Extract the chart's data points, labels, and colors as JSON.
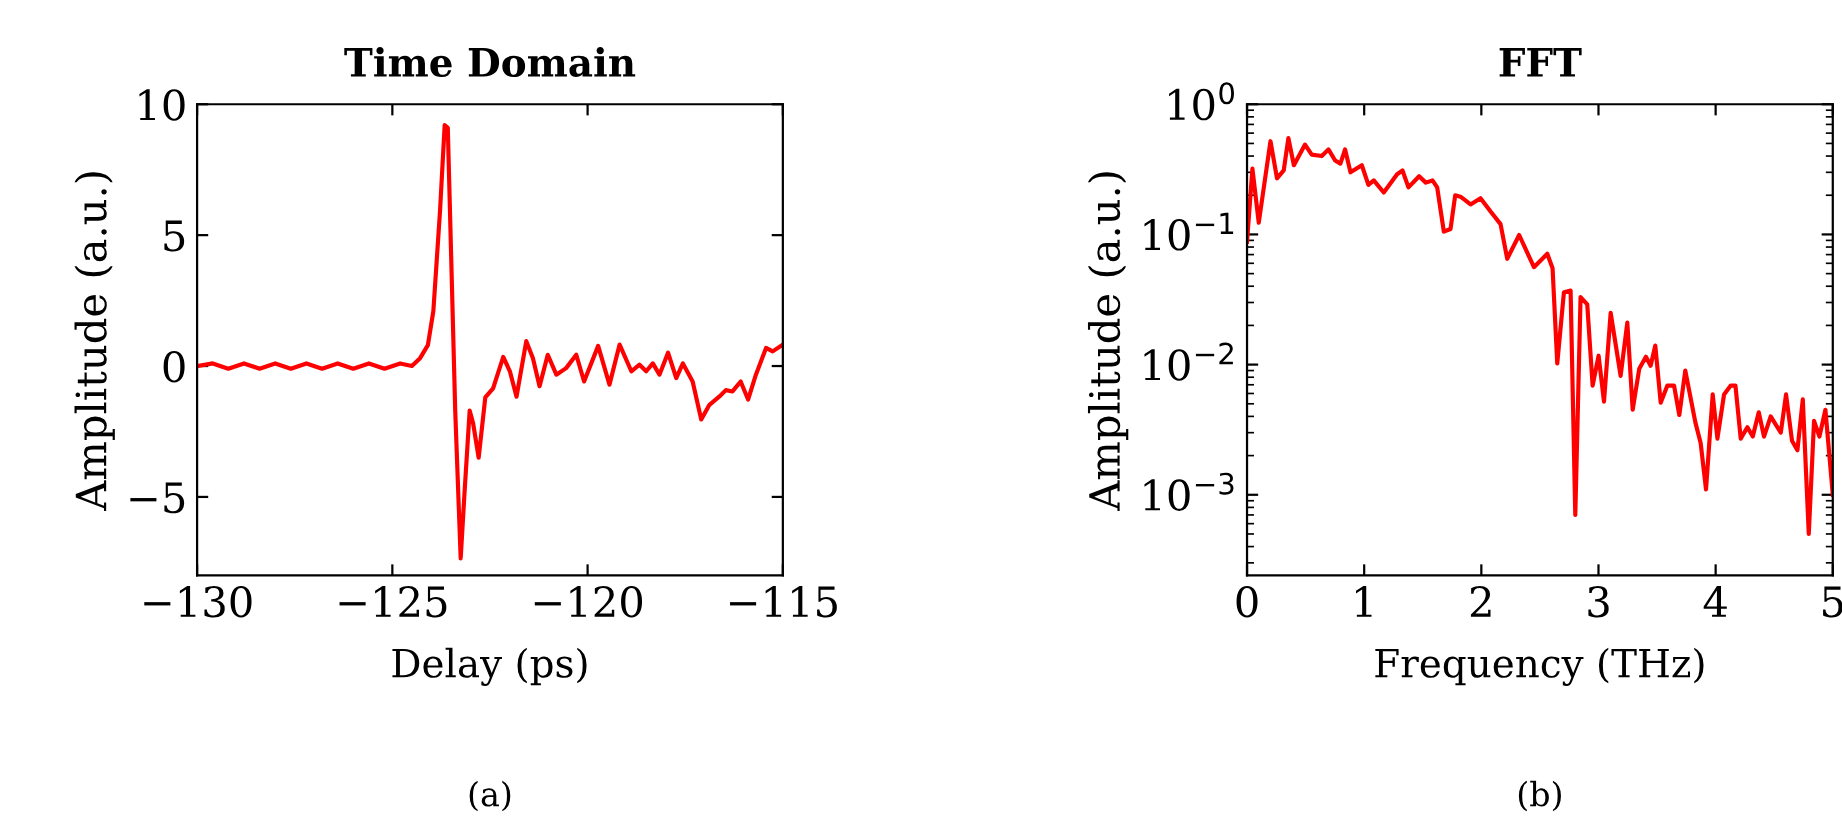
{
  "chart_data": [
    {
      "type": "line",
      "title": "Time Domain",
      "xlabel": "Delay (ps)",
      "ylabel": "Amplitude (a.u.)",
      "annotations": [
        "(a)"
      ],
      "marker": "none",
      "line_style": "solid",
      "xlim": [
        -130,
        -115
      ],
      "ylim": [
        -8,
        10
      ],
      "xticks": [
        {
          "value": -130,
          "label": "−130"
        },
        {
          "value": -125,
          "label": "−125"
        },
        {
          "value": -120,
          "label": "−120"
        },
        {
          "value": -115,
          "label": "−115"
        }
      ],
      "yticks": [
        {
          "value": -5,
          "label": "−5"
        },
        0,
        5,
        10
      ],
      "series": [
        {
          "color": "#ff0000",
          "x": [
            -130,
            -129.6,
            -129.2,
            -128.8,
            -128.4,
            -128,
            -127.6,
            -127.2,
            -126.8,
            -126.4,
            -126,
            -125.6,
            -125.2,
            -124.8,
            -124.5,
            -124.29,
            -124.09,
            -123.95,
            -123.78,
            -123.66,
            -123.58,
            -123.48,
            -123.39,
            -123.25,
            -123.15,
            -123.02,
            -122.93,
            -122.79,
            -122.62,
            -122.42,
            -122.16,
            -121.99,
            -121.82,
            -121.57,
            -121.4,
            -121.23,
            -121.02,
            -120.8,
            -120.55,
            -120.29,
            -120.09,
            -119.73,
            -119.44,
            -119.18,
            -118.88,
            -118.67,
            -118.5,
            -118.33,
            -118.16,
            -117.94,
            -117.73,
            -117.56,
            -117.31,
            -117.09,
            -116.88,
            -116.63,
            -116.46,
            -116.29,
            -116.08,
            -115.89,
            -115.69,
            -115.43,
            -115.26,
            -115.0
          ],
          "values": [
            0.0,
            0.1,
            -0.1,
            0.1,
            -0.1,
            0.1,
            -0.1,
            0.1,
            -0.1,
            0.1,
            -0.1,
            0.1,
            -0.1,
            0.1,
            0.0,
            0.3,
            0.8,
            2.1,
            5.9,
            9.2,
            9.1,
            3.4,
            -1.7,
            -7.35,
            -4.8,
            -1.7,
            -2.2,
            -3.5,
            -1.2,
            -0.85,
            0.35,
            -0.2,
            -1.17,
            0.95,
            0.3,
            -0.77,
            0.43,
            -0.33,
            -0.08,
            0.43,
            -0.59,
            0.77,
            -0.71,
            0.82,
            -0.2,
            0.05,
            -0.2,
            0.1,
            -0.33,
            0.51,
            -0.46,
            0.1,
            -0.59,
            -2.04,
            -1.48,
            -1.17,
            -0.92,
            -0.97,
            -0.59,
            -1.28,
            -0.33,
            0.69,
            0.56,
            0.82
          ]
        }
      ]
    },
    {
      "type": "line",
      "title": "FFT",
      "xlabel": "Frequency (THz)",
      "ylabel": "Amplitude (a.u.)",
      "annotations": [
        "(b)"
      ],
      "marker": "none",
      "line_style": "solid",
      "log": "y",
      "xlim": [
        0,
        5
      ],
      "ylim": [
        0.00024,
        1
      ],
      "xticks": [
        0,
        1,
        2,
        3,
        4,
        5
      ],
      "yticks": [
        {
          "value": 1,
          "label": "10$^{0}$"
        },
        {
          "value": 0.1,
          "label": "10$^{−1}$"
        },
        {
          "value": 0.01,
          "label": "10$^{−2}$"
        },
        {
          "value": 0.001,
          "label": "10$^{−3}$"
        }
      ],
      "series": [
        {
          "color": "#ff0000",
          "x": [
            0,
            0.046,
            0.1,
            0.2,
            0.256,
            0.313,
            0.353,
            0.4,
            0.495,
            0.552,
            0.638,
            0.695,
            0.752,
            0.797,
            0.837,
            0.883,
            0.98,
            1.036,
            1.082,
            1.167,
            1.281,
            1.327,
            1.378,
            1.469,
            1.526,
            1.583,
            1.623,
            1.68,
            1.737,
            1.777,
            1.822,
            1.908,
            1.993,
            2.079,
            2.164,
            2.221,
            2.323,
            2.449,
            2.563,
            2.608,
            2.648,
            2.705,
            2.762,
            2.802,
            2.847,
            2.904,
            2.95,
            3.001,
            3.047,
            3.104,
            3.189,
            3.246,
            3.292,
            3.348,
            3.405,
            3.445,
            3.485,
            3.531,
            3.588,
            3.645,
            3.69,
            3.741,
            3.827,
            3.872,
            3.918,
            3.975,
            4.015,
            4.072,
            4.129,
            4.169,
            4.214,
            4.271,
            4.317,
            4.368,
            4.413,
            4.47,
            4.556,
            4.601,
            4.652,
            4.698,
            4.744,
            4.795,
            4.84,
            4.886,
            4.937,
            5.0
          ],
          "values": [
            0.088,
            0.32,
            0.123,
            0.52,
            0.27,
            0.31,
            0.55,
            0.34,
            0.49,
            0.41,
            0.4,
            0.45,
            0.37,
            0.35,
            0.45,
            0.3,
            0.34,
            0.24,
            0.26,
            0.21,
            0.29,
            0.31,
            0.23,
            0.28,
            0.25,
            0.26,
            0.23,
            0.105,
            0.11,
            0.2,
            0.195,
            0.17,
            0.19,
            0.15,
            0.12,
            0.065,
            0.099,
            0.056,
            0.071,
            0.055,
            0.0102,
            0.036,
            0.037,
            0.0007,
            0.033,
            0.029,
            0.0069,
            0.0117,
            0.0052,
            0.025,
            0.0082,
            0.021,
            0.0045,
            0.0093,
            0.0115,
            0.0098,
            0.014,
            0.0051,
            0.0069,
            0.0069,
            0.0041,
            0.009,
            0.0036,
            0.0025,
            0.0011,
            0.0059,
            0.0027,
            0.0059,
            0.0069,
            0.0069,
            0.0027,
            0.0033,
            0.0028,
            0.0043,
            0.0028,
            0.004,
            0.003,
            0.0059,
            0.0026,
            0.0022,
            0.0054,
            0.0005,
            0.0037,
            0.0028,
            0.0045,
            0.001
          ]
        }
      ]
    }
  ]
}
